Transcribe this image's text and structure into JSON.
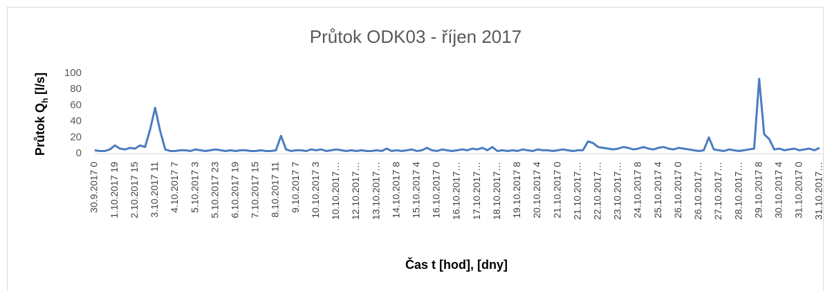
{
  "chart_data": {
    "type": "line",
    "title": "Průtok ODK03 - říjen 2017",
    "y_label": {
      "main": "Průtok Q",
      "sub": "h",
      "unit": " [l/s]"
    },
    "x_label": "Čas t [hod], [dny]",
    "color": "#4a7cc0",
    "ylim": [
      0,
      100
    ],
    "yticks": [
      0,
      20,
      40,
      60,
      80,
      100
    ],
    "categories": [
      "30.9.2017 0",
      null,
      null,
      null,
      "1.10.2017 19",
      null,
      null,
      null,
      "2.10.2017 15",
      null,
      null,
      null,
      "3.10.2017 11",
      null,
      null,
      null,
      "4.10.2017 7",
      null,
      null,
      null,
      "5.10.2017 3",
      null,
      null,
      null,
      "5.10.2017 23",
      null,
      null,
      null,
      "6.10.2017 19",
      null,
      null,
      null,
      "7.10.2017 15",
      null,
      null,
      null,
      "8.10.2017 11",
      null,
      null,
      null,
      "9.10.2017 7",
      null,
      null,
      null,
      "10.10.2017 3",
      null,
      null,
      null,
      "10.10.2017…",
      null,
      null,
      null,
      "12.10.2017…",
      null,
      null,
      null,
      "13.10.2017…",
      null,
      null,
      null,
      "14.10.2017 8",
      null,
      null,
      null,
      "15.10.2017 4",
      null,
      null,
      null,
      "16.10.2017 0",
      null,
      null,
      null,
      "16.10.2017…",
      null,
      null,
      null,
      "17.10.2017…",
      null,
      null,
      null,
      "18.10.2017…",
      null,
      null,
      null,
      "19.10.2017 8",
      null,
      null,
      null,
      "20.10.2017 4",
      null,
      null,
      null,
      "21.10.2017 0",
      null,
      null,
      null,
      "21.10.2017…",
      null,
      null,
      null,
      "22.10.2017…",
      null,
      null,
      null,
      "23.10.2017…",
      null,
      null,
      null,
      "24.10.2017 8",
      null,
      null,
      null,
      "25.10.2017 4",
      null,
      null,
      null,
      "26.10.2017 0",
      null,
      null,
      null,
      "26.10.2017…",
      null,
      null,
      null,
      "27.10.2017…",
      null,
      null,
      null,
      "28.10.2017…",
      null,
      null,
      null,
      "29.10.2017 8",
      null,
      null,
      null,
      "30.10.2017 4",
      null,
      null,
      null,
      "31.10.2017 0",
      null,
      null,
      null,
      "31.10.2017…"
    ],
    "values": [
      4,
      3,
      3,
      5,
      10,
      6,
      5,
      7,
      6,
      10,
      8,
      30,
      57,
      28,
      5,
      3,
      3,
      4,
      4,
      3,
      5,
      4,
      3,
      4,
      5,
      4,
      3,
      4,
      3,
      4,
      4,
      3,
      3,
      4,
      3,
      3,
      4,
      22,
      5,
      3,
      4,
      4,
      3,
      5,
      4,
      5,
      3,
      4,
      5,
      4,
      3,
      4,
      3,
      4,
      3,
      3,
      4,
      3,
      6,
      3,
      4,
      3,
      4,
      5,
      3,
      4,
      7,
      4,
      3,
      5,
      4,
      3,
      4,
      5,
      4,
      6,
      5,
      7,
      4,
      8,
      3,
      4,
      3,
      4,
      3,
      5,
      4,
      3,
      5,
      4,
      4,
      3,
      4,
      5,
      4,
      3,
      4,
      4,
      15,
      13,
      8,
      7,
      6,
      5,
      6,
      8,
      7,
      5,
      6,
      8,
      6,
      5,
      7,
      8,
      6,
      5,
      7,
      6,
      5,
      4,
      3,
      4,
      20,
      5,
      4,
      3,
      5,
      4,
      3,
      4,
      5,
      6,
      93,
      24,
      18,
      5,
      6,
      4,
      5,
      6,
      4,
      5,
      6,
      4,
      7
    ]
  }
}
